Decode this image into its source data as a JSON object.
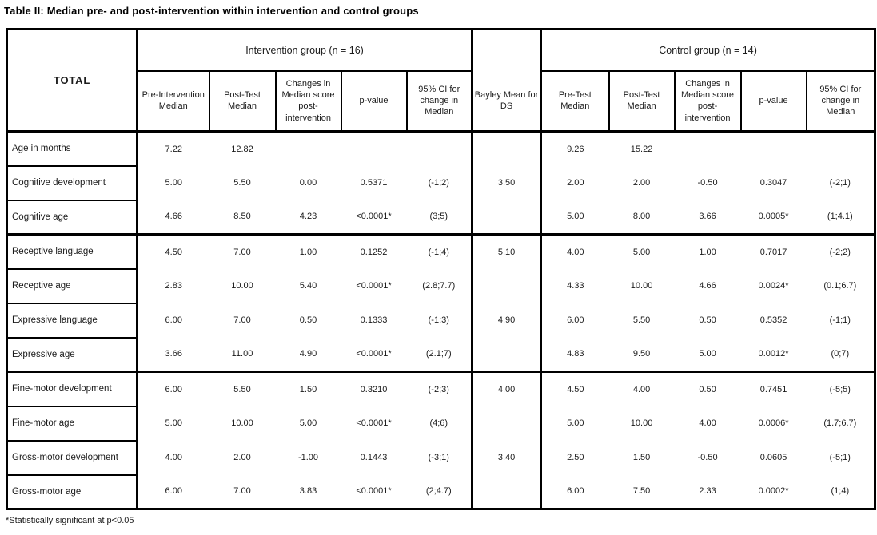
{
  "title": "Table II: Median pre- and post-intervention within intervention and control groups",
  "footnote": "*Statistically significant at p<0.05",
  "table": {
    "corner_label": "TOTAL",
    "group_headers": {
      "intervention": "Intervention group (n = 16)",
      "bayley": "Bayley Mean for DS",
      "control": "Control group (n = 14)"
    },
    "intervention_columns": [
      "Pre-Intervention Median",
      "Post-Test Median",
      "Changes in Median score post-intervention",
      "p-value",
      "95% CI for change in Median"
    ],
    "control_columns": [
      "Pre-Test Median",
      "Post-Test Median",
      "Changes in Median score post-intervention",
      "p-value",
      "95% CI for change in Median"
    ],
    "rows": [
      {
        "label": "Age in months",
        "intervention": [
          "7.22",
          "12.82",
          "",
          "",
          ""
        ],
        "bayley": "",
        "control": [
          "9.26",
          "15.22",
          "",
          "",
          ""
        ],
        "group_end": false
      },
      {
        "label": "Cognitive development",
        "intervention": [
          "5.00",
          "5.50",
          "0.00",
          "0.5371",
          "(-1;2)"
        ],
        "bayley": "3.50",
        "control": [
          "2.00",
          "2.00",
          "-0.50",
          "0.3047",
          "(-2;1)"
        ],
        "group_end": false
      },
      {
        "label": "Cognitive age",
        "intervention": [
          "4.66",
          "8.50",
          "4.23",
          "<0.0001*",
          "(3;5)"
        ],
        "bayley": "",
        "control": [
          "5.00",
          "8.00",
          "3.66",
          "0.0005*",
          "(1;4.1)"
        ],
        "group_end": true
      },
      {
        "label": "Receptive language",
        "intervention": [
          "4.50",
          "7.00",
          "1.00",
          "0.1252",
          "(-1;4)"
        ],
        "bayley": "5.10",
        "control": [
          "4.00",
          "5.00",
          "1.00",
          "0.7017",
          "(-2;2)"
        ],
        "group_end": false
      },
      {
        "label": "Receptive age",
        "intervention": [
          "2.83",
          "10.00",
          "5.40",
          "<0.0001*",
          "(2.8;7.7)"
        ],
        "bayley": "",
        "control": [
          "4.33",
          "10.00",
          "4.66",
          "0.0024*",
          "(0.1;6.7)"
        ],
        "group_end": false
      },
      {
        "label": "Expressive language",
        "intervention": [
          "6.00",
          "7.00",
          "0.50",
          "0.1333",
          "(-1;3)"
        ],
        "bayley": "4.90",
        "control": [
          "6.00",
          "5.50",
          "0.50",
          "0.5352",
          "(-1;1)"
        ],
        "group_end": false
      },
      {
        "label": "Expressive age",
        "intervention": [
          "3.66",
          "11.00",
          "4.90",
          "<0.0001*",
          "(2.1;7)"
        ],
        "bayley": "",
        "control": [
          "4.83",
          "9.50",
          "5.00",
          "0.0012*",
          "(0;7)"
        ],
        "group_end": true
      },
      {
        "label": "Fine-motor development",
        "intervention": [
          "6.00",
          "5.50",
          "1.50",
          "0.3210",
          "(-2;3)"
        ],
        "bayley": "4.00",
        "control": [
          "4.50",
          "4.00",
          "0.50",
          "0.7451",
          "(-5;5)"
        ],
        "group_end": false
      },
      {
        "label": "Fine-motor age",
        "intervention": [
          "5.00",
          "10.00",
          "5.00",
          "<0.0001*",
          "(4;6)"
        ],
        "bayley": "",
        "control": [
          "5.00",
          "10.00",
          "4.00",
          "0.0006*",
          "(1.7;6.7)"
        ],
        "group_end": false
      },
      {
        "label": "Gross-motor development",
        "intervention": [
          "4.00",
          "2.00",
          "-1.00",
          "0.1443",
          "(-3;1)"
        ],
        "bayley": "3.40",
        "control": [
          "2.50",
          "1.50",
          "-0.50",
          "0.0605",
          "(-5;1)"
        ],
        "group_end": false
      },
      {
        "label": "Gross-motor age",
        "intervention": [
          "6.00",
          "7.00",
          "3.83",
          "<0.0001*",
          "(2;4.7)"
        ],
        "bayley": "",
        "control": [
          "6.00",
          "7.50",
          "2.33",
          "0.0002*",
          "(1;4)"
        ],
        "group_end": false
      }
    ]
  }
}
